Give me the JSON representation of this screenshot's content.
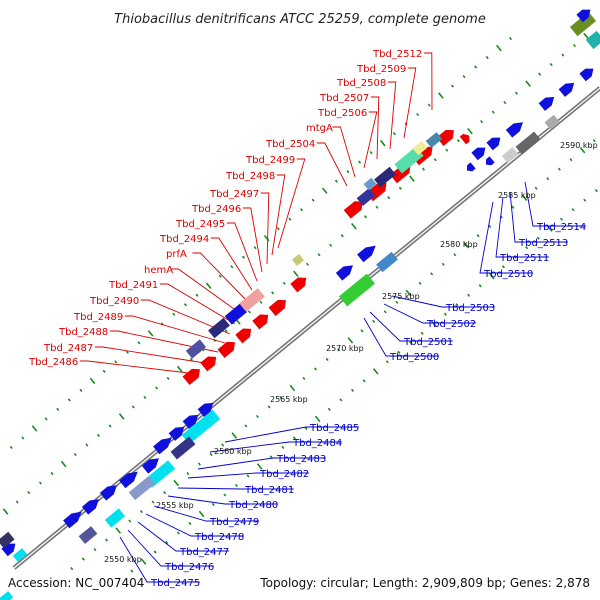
{
  "title": "Thiobacillus denitrificans ATCC 25259, complete genome",
  "footer": {
    "accession": "Accession: NC_007404",
    "summary": "Topology: circular; Length: 2,909,809 bp; Genes: 2,878"
  },
  "colors": {
    "forward_label": "#dd0000",
    "reverse_label": "#0000cc",
    "backbone": "#777777",
    "tick": "#1a8a1a"
  },
  "kbp_ticks": [
    "2550 kbp",
    "2555 kbp",
    "2560 kbp",
    "2565 kbp",
    "2570 kbp",
    "2575 kbp",
    "2580 kbp",
    "2585 kbp",
    "2590 kbp"
  ],
  "forward_labels": [
    "Tbd_2486",
    "Tbd_2487",
    "Tbd_2488",
    "Tbd_2489",
    "Tbd_2490",
    "Tbd_2491",
    "hemA",
    "prfA",
    "Tbd_2494",
    "Tbd_2495",
    "Tbd_2496",
    "Tbd_2497",
    "Tbd_2498",
    "Tbd_2499",
    "Tbd_2504",
    "mtgA",
    "Tbd_2506",
    "Tbd_2507",
    "Tbd_2508",
    "Tbd_2509",
    "Tbd_2512"
  ],
  "reverse_labels": [
    "Tbd_2475",
    "Tbd_2476",
    "Tbd_2477",
    "Tbd_2478",
    "Tbd_2479",
    "Tbd_2480",
    "Tbd_2481",
    "Tbd_2482",
    "Tbd_2483",
    "Tbd_2484",
    "Tbd_2485",
    "Tbd_2500",
    "Tbd_2501",
    "Tbd_2502",
    "Tbd_2503",
    "Tbd_2510",
    "Tbd_2511",
    "Tbd_2513",
    "Tbd_2514"
  ]
}
